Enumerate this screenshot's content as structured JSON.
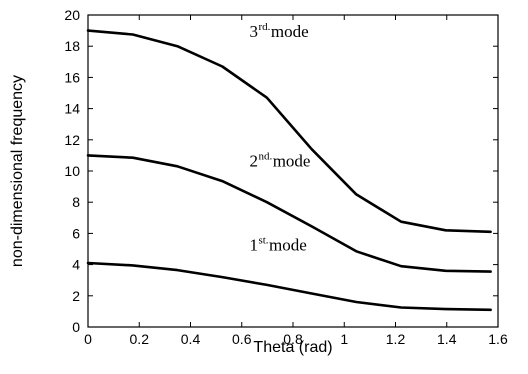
{
  "chart_data": {
    "type": "line",
    "title": "",
    "xlabel": "Theta (rad)",
    "ylabel": "non-dimensional frequency",
    "xlim": [
      0,
      1.6
    ],
    "ylim": [
      0,
      20
    ],
    "xticks": [
      0,
      0.2,
      0.4,
      0.6,
      0.8,
      1,
      1.2,
      1.4,
      1.6
    ],
    "xtick_labels": [
      "0",
      "0.2",
      "0.4",
      "0.6",
      "0.8",
      "1",
      "1.2",
      "1.4",
      "1.6"
    ],
    "yticks": [
      0,
      2,
      4,
      6,
      8,
      10,
      12,
      14,
      16,
      18,
      20
    ],
    "ytick_labels": [
      "0",
      "2",
      "4",
      "6",
      "8",
      "10",
      "12",
      "14",
      "16",
      "18",
      "20"
    ],
    "grid": false,
    "legend": "none",
    "series": [
      {
        "x": [
          0,
          0.175,
          0.349,
          0.524,
          0.698,
          0.873,
          1.047,
          1.222,
          1.396,
          1.571
        ],
        "y": [
          4.1,
          3.95,
          3.65,
          3.2,
          2.7,
          2.15,
          1.6,
          1.25,
          1.15,
          1.1
        ]
      },
      {
        "x": [
          0,
          0.175,
          0.349,
          0.524,
          0.698,
          0.873,
          1.047,
          1.222,
          1.396,
          1.571
        ],
        "y": [
          11.0,
          10.85,
          10.3,
          9.35,
          8.0,
          6.45,
          4.85,
          3.9,
          3.6,
          3.55
        ]
      },
      {
        "x": [
          0,
          0.175,
          0.349,
          0.524,
          0.698,
          0.873,
          1.047,
          1.222,
          1.396,
          1.571
        ],
        "y": [
          19.0,
          18.75,
          18.0,
          16.7,
          14.7,
          11.4,
          8.5,
          6.75,
          6.2,
          6.1
        ]
      }
    ],
    "annotations": [
      {
        "base": "1",
        "sup": "st.",
        "text": "mode",
        "x": 0.63,
        "y": 4.9
      },
      {
        "base": "2",
        "sup": "nd.",
        "text": "mode",
        "x": 0.63,
        "y": 10.3
      },
      {
        "base": "3",
        "sup": "rd.",
        "text": "mode",
        "x": 0.63,
        "y": 18.6
      }
    ],
    "colors": {
      "line": "#000000",
      "background": "#ffffff"
    }
  }
}
